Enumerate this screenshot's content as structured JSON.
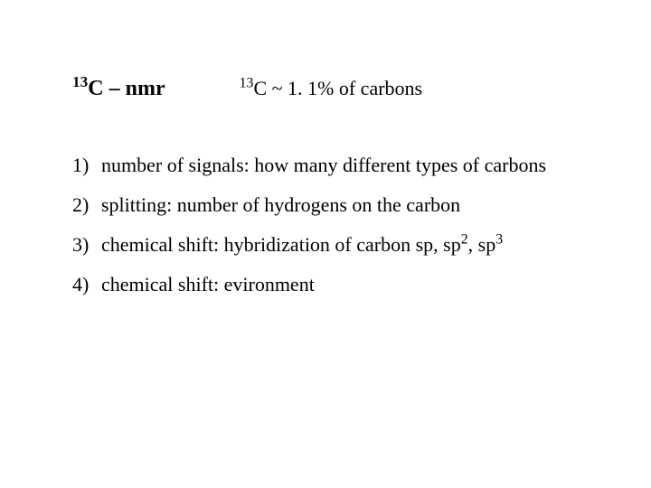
{
  "title": {
    "isotope_sup": "13",
    "isotope_base": "C",
    "dash": " – ",
    "label": "nmr"
  },
  "subtitle": {
    "isotope_sup": "13",
    "isotope_base": "C",
    "rest": " ~ 1. 1% of carbons"
  },
  "items": [
    {
      "num": "1)",
      "text": "number of signals: how many different types of carbons"
    },
    {
      "num": "2)",
      "text": "splitting: number of hydrogens on the carbon"
    },
    {
      "num": "3)",
      "text_pre": "chemical shift: hybridization of carbon  sp, sp",
      "sup1": "2",
      "mid": ", sp",
      "sup2": "3"
    },
    {
      "num": "4)",
      "text": "chemical shift:  evironment"
    }
  ],
  "style": {
    "background_color": "#ffffff",
    "text_color": "#000000",
    "font_family": "Times New Roman",
    "title_fontsize": 24,
    "body_fontsize": 22,
    "title_fontweight": "bold"
  }
}
